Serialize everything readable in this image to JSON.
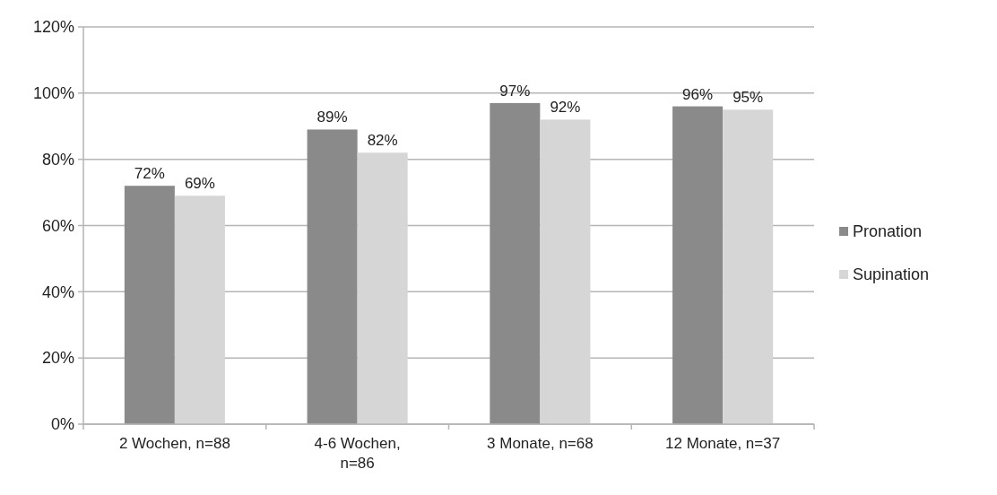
{
  "chart_data": {
    "type": "bar",
    "categories": [
      "2 Wochen, n=88",
      "4-6 Wochen, n=86",
      "3 Monate, n=68",
      "12 Monate, n=37"
    ],
    "series": [
      {
        "name": "Pronation",
        "color": "#8a8a8a",
        "values": [
          72,
          89,
          97,
          96
        ],
        "value_labels": [
          "72%",
          "89%",
          "97%",
          "96%"
        ]
      },
      {
        "name": "Supination",
        "color": "#d6d6d6",
        "values": [
          69,
          82,
          92,
          95
        ],
        "value_labels": [
          "69%",
          "82%",
          "92%",
          "95%"
        ]
      }
    ],
    "ylim": [
      0,
      120
    ],
    "yticks": [
      {
        "value": 0,
        "label": "0%"
      },
      {
        "value": 20,
        "label": "20%"
      },
      {
        "value": 40,
        "label": "40%"
      },
      {
        "value": 60,
        "label": "60%"
      },
      {
        "value": 80,
        "label": "80%"
      },
      {
        "value": 100,
        "label": "100%"
      },
      {
        "value": 120,
        "label": "120%"
      }
    ],
    "grid": "y",
    "legend": "right"
  }
}
